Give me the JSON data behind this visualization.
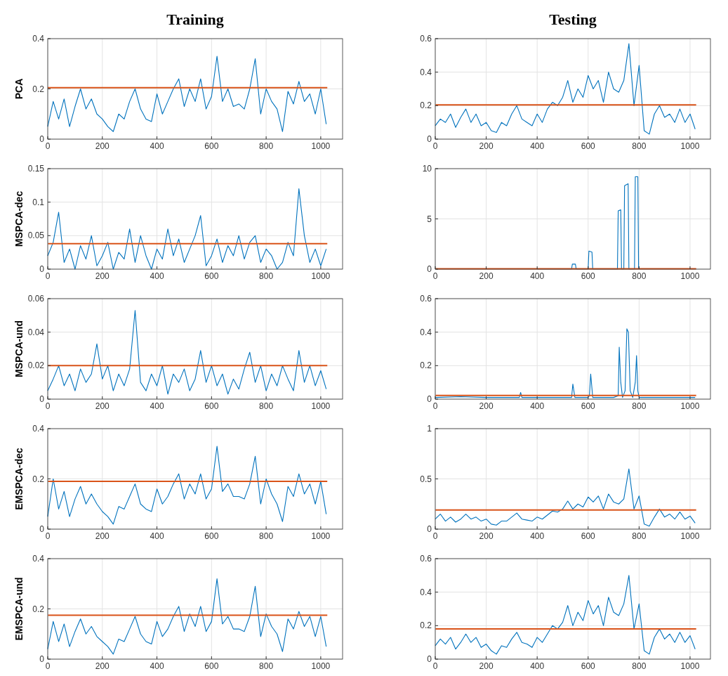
{
  "chart_data": [
    {
      "type": "line",
      "title": "Training",
      "ylabel": "PCA",
      "xlim": [
        0,
        1080
      ],
      "xticks": [
        0,
        200,
        400,
        600,
        800,
        1000
      ],
      "ylim": [
        0,
        0.4
      ],
      "yticks": [
        0,
        0.2,
        0.4
      ],
      "grid": true,
      "x": [
        0,
        20,
        40,
        60,
        80,
        100,
        120,
        140,
        160,
        180,
        200,
        220,
        240,
        260,
        280,
        300,
        320,
        340,
        360,
        380,
        400,
        420,
        440,
        460,
        480,
        500,
        520,
        540,
        560,
        580,
        600,
        620,
        640,
        660,
        680,
        700,
        720,
        740,
        760,
        780,
        800,
        820,
        840,
        860,
        880,
        900,
        920,
        940,
        960,
        980,
        1000,
        1020
      ],
      "series": [
        {
          "color": "#0072bd",
          "values": [
            0.05,
            0.15,
            0.08,
            0.16,
            0.05,
            0.13,
            0.2,
            0.12,
            0.16,
            0.1,
            0.08,
            0.05,
            0.03,
            0.1,
            0.08,
            0.15,
            0.2,
            0.12,
            0.08,
            0.07,
            0.18,
            0.1,
            0.15,
            0.2,
            0.24,
            0.13,
            0.2,
            0.15,
            0.24,
            0.12,
            0.17,
            0.33,
            0.15,
            0.2,
            0.13,
            0.14,
            0.12,
            0.2,
            0.32,
            0.1,
            0.2,
            0.15,
            0.12,
            0.03,
            0.19,
            0.14,
            0.23,
            0.15,
            0.18,
            0.1,
            0.2,
            0.06
          ]
        },
        {
          "color": "#d95319",
          "x": [
            0,
            1024
          ],
          "values": [
            0.205,
            0.205
          ]
        }
      ]
    },
    {
      "type": "line",
      "title": "Testing",
      "xlim": [
        0,
        1080
      ],
      "xticks": [
        0,
        200,
        400,
        600,
        800,
        1000
      ],
      "ylim": [
        0,
        0.6
      ],
      "yticks": [
        0,
        0.2,
        0.4,
        0.6
      ],
      "grid": true,
      "x": [
        0,
        20,
        40,
        60,
        80,
        100,
        120,
        140,
        160,
        180,
        200,
        220,
        240,
        260,
        280,
        300,
        320,
        340,
        360,
        380,
        400,
        420,
        440,
        460,
        480,
        500,
        520,
        540,
        560,
        580,
        600,
        620,
        640,
        660,
        680,
        700,
        720,
        740,
        760,
        780,
        800,
        820,
        840,
        860,
        880,
        900,
        920,
        940,
        960,
        980,
        1000,
        1020
      ],
      "series": [
        {
          "color": "#0072bd",
          "values": [
            0.08,
            0.12,
            0.1,
            0.15,
            0.07,
            0.13,
            0.18,
            0.1,
            0.15,
            0.08,
            0.1,
            0.05,
            0.04,
            0.1,
            0.08,
            0.15,
            0.2,
            0.12,
            0.1,
            0.08,
            0.15,
            0.1,
            0.18,
            0.22,
            0.2,
            0.25,
            0.35,
            0.22,
            0.3,
            0.25,
            0.38,
            0.3,
            0.35,
            0.22,
            0.4,
            0.3,
            0.28,
            0.35,
            0.57,
            0.2,
            0.44,
            0.05,
            0.03,
            0.15,
            0.2,
            0.13,
            0.15,
            0.1,
            0.18,
            0.1,
            0.15,
            0.06
          ]
        },
        {
          "color": "#d95319",
          "x": [
            1,
            1024
          ],
          "values": [
            0.205,
            0.205
          ]
        }
      ]
    },
    {
      "type": "line",
      "ylabel": "MSPCA-dec",
      "xlim": [
        0,
        1080
      ],
      "xticks": [
        0,
        200,
        400,
        600,
        800,
        1000
      ],
      "ylim": [
        0,
        0.15
      ],
      "yticks": [
        0,
        0.05,
        0.1,
        0.15
      ],
      "grid": true,
      "x": [
        0,
        20,
        40,
        60,
        80,
        100,
        120,
        140,
        160,
        180,
        200,
        220,
        240,
        260,
        280,
        300,
        320,
        340,
        360,
        380,
        400,
        420,
        440,
        460,
        480,
        500,
        520,
        540,
        560,
        580,
        600,
        620,
        640,
        660,
        680,
        700,
        720,
        740,
        760,
        780,
        800,
        820,
        840,
        860,
        880,
        900,
        920,
        940,
        960,
        980,
        1000,
        1020
      ],
      "series": [
        {
          "color": "#0072bd",
          "values": [
            0.02,
            0.04,
            0.085,
            0.01,
            0.03,
            0,
            0.035,
            0.015,
            0.05,
            0.005,
            0.02,
            0.04,
            0,
            0.025,
            0.015,
            0.06,
            0.01,
            0.05,
            0.02,
            0,
            0.03,
            0.015,
            0.06,
            0.02,
            0.045,
            0.01,
            0.03,
            0.05,
            0.08,
            0.005,
            0.02,
            0.045,
            0.01,
            0.035,
            0.02,
            0.05,
            0.015,
            0.04,
            0.05,
            0.01,
            0.03,
            0.02,
            0,
            0.01,
            0.04,
            0.02,
            0.12,
            0.05,
            0.01,
            0.03,
            0.005,
            0.03
          ]
        },
        {
          "color": "#d95319",
          "x": [
            1,
            1024
          ],
          "values": [
            0.038,
            0.038
          ]
        }
      ]
    },
    {
      "type": "line",
      "xlim": [
        0,
        1080
      ],
      "xticks": [
        0,
        200,
        400,
        600,
        800,
        1000
      ],
      "ylim": [
        0,
        10
      ],
      "yticks": [
        0,
        5,
        10
      ],
      "grid": true,
      "x": [
        400,
        535,
        538,
        550,
        553,
        600,
        603,
        615,
        618,
        715,
        718,
        728,
        731,
        740,
        743,
        757,
        760,
        782,
        785,
        795,
        798
      ],
      "series": [
        {
          "color": "#0072bd",
          "values": [
            0.02,
            0.02,
            0.5,
            0.5,
            0.02,
            0.02,
            1.8,
            1.7,
            0.02,
            0.02,
            5.8,
            5.9,
            0.02,
            0.02,
            8.3,
            8.5,
            0.02,
            0.02,
            9.2,
            9.2,
            0.02
          ]
        },
        {
          "color": "#d95319",
          "x": [
            1,
            1024
          ],
          "values": [
            0.04,
            0.04
          ]
        }
      ]
    },
    {
      "type": "line",
      "ylabel": "MSPCA-und",
      "xlim": [
        0,
        1080
      ],
      "xticks": [
        0,
        200,
        400,
        600,
        800,
        1000
      ],
      "ylim": [
        0,
        0.06
      ],
      "yticks": [
        0,
        0.02,
        0.04,
        0.06
      ],
      "grid": true,
      "x": [
        0,
        20,
        40,
        60,
        80,
        100,
        120,
        140,
        160,
        180,
        200,
        220,
        240,
        260,
        280,
        300,
        320,
        340,
        360,
        380,
        400,
        420,
        440,
        460,
        480,
        500,
        520,
        540,
        560,
        580,
        600,
        620,
        640,
        660,
        680,
        700,
        720,
        740,
        760,
        780,
        800,
        820,
        840,
        860,
        880,
        900,
        920,
        940,
        960,
        980,
        1000,
        1020
      ],
      "series": [
        {
          "color": "#0072bd",
          "values": [
            0.005,
            0.012,
            0.02,
            0.008,
            0.015,
            0.005,
            0.018,
            0.01,
            0.015,
            0.033,
            0.012,
            0.02,
            0.005,
            0.015,
            0.008,
            0.018,
            0.053,
            0.01,
            0.005,
            0.015,
            0.008,
            0.02,
            0.003,
            0.015,
            0.01,
            0.018,
            0.005,
            0.012,
            0.029,
            0.01,
            0.02,
            0.008,
            0.015,
            0.003,
            0.012,
            0.006,
            0.018,
            0.028,
            0.01,
            0.02,
            0.005,
            0.015,
            0.008,
            0.02,
            0.012,
            0.005,
            0.029,
            0.01,
            0.02,
            0.008,
            0.017,
            0.006
          ]
        },
        {
          "color": "#d95319",
          "x": [
            1,
            1024
          ],
          "values": [
            0.02,
            0.02
          ]
        }
      ]
    },
    {
      "type": "line",
      "xlim": [
        0,
        1080
      ],
      "xticks": [
        0,
        200,
        400,
        600,
        800,
        1000
      ],
      "ylim": [
        0,
        0.6
      ],
      "yticks": [
        0,
        0.2,
        0.4,
        0.6
      ],
      "grid": true,
      "x": [
        0,
        100,
        200,
        330,
        335,
        340,
        500,
        535,
        540,
        548,
        600,
        605,
        610,
        618,
        700,
        718,
        722,
        728,
        735,
        745,
        752,
        758,
        765,
        775,
        785,
        790,
        795,
        800,
        900,
        1020
      ],
      "series": [
        {
          "color": "#0072bd",
          "values": [
            0.01,
            0.015,
            0.01,
            0.01,
            0.04,
            0.01,
            0.01,
            0.01,
            0.09,
            0.01,
            0.01,
            0.02,
            0.15,
            0.01,
            0.01,
            0.02,
            0.31,
            0.1,
            0.01,
            0.05,
            0.42,
            0.4,
            0.05,
            0.01,
            0.1,
            0.26,
            0.05,
            0.01,
            0.01,
            0.01
          ]
        },
        {
          "color": "#d95319",
          "x": [
            1,
            1024
          ],
          "values": [
            0.022,
            0.022
          ]
        }
      ]
    },
    {
      "type": "line",
      "ylabel": "EMSPCA-dec",
      "xlim": [
        0,
        1080
      ],
      "xticks": [
        0,
        200,
        400,
        600,
        800,
        1000
      ],
      "ylim": [
        0,
        0.4
      ],
      "yticks": [
        0,
        0.2,
        0.4
      ],
      "grid": true,
      "x": [
        0,
        20,
        40,
        60,
        80,
        100,
        120,
        140,
        160,
        180,
        200,
        220,
        240,
        260,
        280,
        300,
        320,
        340,
        360,
        380,
        400,
        420,
        440,
        460,
        480,
        500,
        520,
        540,
        560,
        580,
        600,
        620,
        640,
        660,
        680,
        700,
        720,
        740,
        760,
        780,
        800,
        820,
        840,
        860,
        880,
        900,
        920,
        940,
        960,
        980,
        1000,
        1020
      ],
      "series": [
        {
          "color": "#0072bd",
          "values": [
            0.05,
            0.2,
            0.08,
            0.15,
            0.05,
            0.12,
            0.17,
            0.1,
            0.14,
            0.1,
            0.07,
            0.05,
            0.02,
            0.09,
            0.08,
            0.13,
            0.18,
            0.1,
            0.08,
            0.07,
            0.16,
            0.1,
            0.13,
            0.18,
            0.22,
            0.12,
            0.18,
            0.14,
            0.22,
            0.12,
            0.16,
            0.33,
            0.15,
            0.18,
            0.13,
            0.13,
            0.12,
            0.18,
            0.29,
            0.1,
            0.2,
            0.14,
            0.1,
            0.03,
            0.17,
            0.13,
            0.22,
            0.14,
            0.18,
            0.1,
            0.19,
            0.06
          ]
        },
        {
          "color": "#d95319",
          "x": [
            1,
            1024
          ],
          "values": [
            0.19,
            0.19
          ]
        }
      ]
    },
    {
      "type": "line",
      "xlim": [
        0,
        1080
      ],
      "xticks": [
        0,
        200,
        400,
        600,
        800,
        1000
      ],
      "ylim": [
        0,
        1
      ],
      "yticks": [
        0,
        0.5,
        1
      ],
      "grid": true,
      "x": [
        0,
        20,
        40,
        60,
        80,
        100,
        120,
        140,
        160,
        180,
        200,
        220,
        240,
        260,
        280,
        300,
        320,
        340,
        360,
        380,
        400,
        420,
        440,
        460,
        480,
        500,
        520,
        540,
        560,
        580,
        600,
        620,
        640,
        660,
        680,
        700,
        720,
        740,
        760,
        780,
        800,
        820,
        840,
        860,
        880,
        900,
        920,
        940,
        960,
        980,
        1000,
        1020
      ],
      "series": [
        {
          "color": "#0072bd",
          "values": [
            0.1,
            0.15,
            0.08,
            0.12,
            0.07,
            0.1,
            0.15,
            0.1,
            0.12,
            0.08,
            0.1,
            0.05,
            0.04,
            0.08,
            0.08,
            0.12,
            0.16,
            0.1,
            0.09,
            0.08,
            0.12,
            0.1,
            0.14,
            0.18,
            0.17,
            0.2,
            0.28,
            0.2,
            0.25,
            0.22,
            0.32,
            0.27,
            0.33,
            0.2,
            0.35,
            0.27,
            0.25,
            0.3,
            0.6,
            0.2,
            0.33,
            0.05,
            0.03,
            0.12,
            0.2,
            0.12,
            0.15,
            0.1,
            0.17,
            0.1,
            0.13,
            0.06
          ]
        },
        {
          "color": "#d95319",
          "x": [
            1,
            1024
          ],
          "values": [
            0.19,
            0.19
          ]
        }
      ]
    },
    {
      "type": "line",
      "ylabel": "EMSPCA-und",
      "xlim": [
        0,
        1080
      ],
      "xticks": [
        0,
        200,
        400,
        600,
        800,
        1000
      ],
      "ylim": [
        0,
        0.4
      ],
      "yticks": [
        0,
        0.2,
        0.4
      ],
      "grid": true,
      "x": [
        0,
        20,
        40,
        60,
        80,
        100,
        120,
        140,
        160,
        180,
        200,
        220,
        240,
        260,
        280,
        300,
        320,
        340,
        360,
        380,
        400,
        420,
        440,
        460,
        480,
        500,
        520,
        540,
        560,
        580,
        600,
        620,
        640,
        660,
        680,
        700,
        720,
        740,
        760,
        780,
        800,
        820,
        840,
        860,
        880,
        900,
        920,
        940,
        960,
        980,
        1000,
        1020
      ],
      "series": [
        {
          "color": "#0072bd",
          "values": [
            0.04,
            0.15,
            0.07,
            0.14,
            0.05,
            0.11,
            0.16,
            0.1,
            0.13,
            0.09,
            0.07,
            0.05,
            0.02,
            0.08,
            0.07,
            0.12,
            0.17,
            0.1,
            0.07,
            0.06,
            0.15,
            0.09,
            0.12,
            0.17,
            0.21,
            0.11,
            0.18,
            0.13,
            0.21,
            0.11,
            0.15,
            0.32,
            0.14,
            0.17,
            0.12,
            0.12,
            0.11,
            0.17,
            0.29,
            0.09,
            0.18,
            0.13,
            0.1,
            0.03,
            0.16,
            0.12,
            0.19,
            0.13,
            0.17,
            0.09,
            0.17,
            0.05
          ]
        },
        {
          "color": "#d95319",
          "x": [
            1,
            1024
          ],
          "values": [
            0.175,
            0.175
          ]
        }
      ]
    },
    {
      "type": "line",
      "xlim": [
        0,
        1080
      ],
      "xticks": [
        0,
        200,
        400,
        600,
        800,
        1000
      ],
      "ylim": [
        0,
        0.6
      ],
      "yticks": [
        0,
        0.2,
        0.4,
        0.6
      ],
      "grid": true,
      "x": [
        0,
        20,
        40,
        60,
        80,
        100,
        120,
        140,
        160,
        180,
        200,
        220,
        240,
        260,
        280,
        300,
        320,
        340,
        360,
        380,
        400,
        420,
        440,
        460,
        480,
        500,
        520,
        540,
        560,
        580,
        600,
        620,
        640,
        660,
        680,
        700,
        720,
        740,
        760,
        780,
        800,
        820,
        840,
        860,
        880,
        900,
        920,
        940,
        960,
        980,
        1000,
        1020
      ],
      "series": [
        {
          "color": "#0072bd",
          "values": [
            0.08,
            0.12,
            0.09,
            0.13,
            0.06,
            0.1,
            0.15,
            0.1,
            0.13,
            0.07,
            0.09,
            0.05,
            0.03,
            0.08,
            0.07,
            0.12,
            0.16,
            0.1,
            0.09,
            0.07,
            0.13,
            0.1,
            0.15,
            0.2,
            0.18,
            0.22,
            0.32,
            0.2,
            0.28,
            0.23,
            0.35,
            0.27,
            0.32,
            0.2,
            0.37,
            0.28,
            0.26,
            0.33,
            0.5,
            0.18,
            0.33,
            0.05,
            0.03,
            0.13,
            0.18,
            0.12,
            0.15,
            0.1,
            0.16,
            0.1,
            0.14,
            0.06
          ]
        },
        {
          "color": "#d95319",
          "x": [
            1,
            1024
          ],
          "values": [
            0.18,
            0.18
          ]
        }
      ]
    }
  ]
}
